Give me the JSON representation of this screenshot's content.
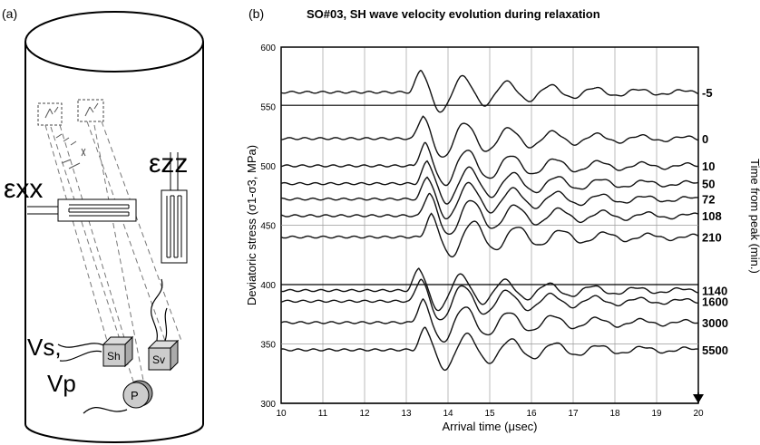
{
  "panel_a": {
    "label": "(a)",
    "exx": "εxx",
    "ezz": "εzz",
    "vs": "Vs,",
    "vp": "Vp",
    "sh": "Sh",
    "sv": "Sv",
    "p": "P"
  },
  "panel_b": {
    "label": "(b)"
  },
  "chart_data": {
    "type": "line",
    "title": "SO#03, SH wave velocity evolution during relaxation",
    "xlabel": "Arrival time (μsec)",
    "ylabel": "Deviatoric stress (σ1-σ3, MPa)",
    "right_label": "Time from peak (min.)",
    "xlim": [
      10,
      20
    ],
    "ylim": [
      300,
      600
    ],
    "xticks": [
      "10",
      "11",
      "12",
      "13",
      "14",
      "15",
      "16",
      "17",
      "18",
      "19",
      "20"
    ],
    "yticks": [
      "300",
      "350",
      "400",
      "450",
      "500",
      "550",
      "600"
    ],
    "grid": true,
    "series": [
      {
        "name": "-5",
        "baseline": 562,
        "onset": 13.05
      },
      {
        "name": "0",
        "baseline": 523,
        "onset": 13.1
      },
      {
        "name": "10",
        "baseline": 500,
        "onset": 13.15
      },
      {
        "name": "50",
        "baseline": 485,
        "onset": 13.2
      },
      {
        "name": "72",
        "baseline": 472,
        "onset": 13.2
      },
      {
        "name": "108",
        "baseline": 458,
        "onset": 13.25
      },
      {
        "name": "210",
        "baseline": 440,
        "onset": 13.3
      },
      {
        "name": "1140",
        "baseline": 395,
        "onset": 13.0
      },
      {
        "name": "1600",
        "baseline": 386,
        "onset": 13.05
      },
      {
        "name": "3000",
        "baseline": 368,
        "onset": 13.1
      },
      {
        "name": "5500",
        "baseline": 345,
        "onset": 13.15
      }
    ],
    "reference_lines": [
      551,
      400,
      300
    ]
  }
}
